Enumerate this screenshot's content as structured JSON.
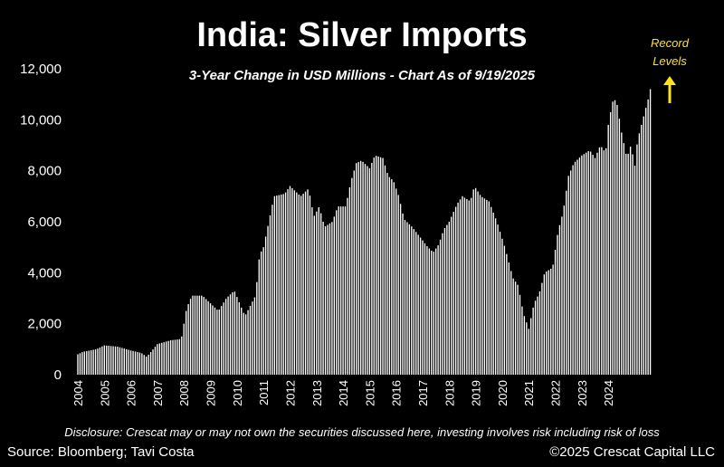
{
  "title": "India: Silver Imports",
  "subtitle": "3-Year Change in USD Millions - Chart As of 9/19/2025",
  "annotation": {
    "line1": "Record",
    "line2": "Levels",
    "color": "#ffe21a"
  },
  "disclosure": "Disclosure: Crescat may or may not own the securities discussed here, investing involves risk including risk of loss",
  "source": "Source: Bloomberg; Tavi Costa",
  "copyright": "©2025 Crescat Capital LLC",
  "colors": {
    "background": "#000000",
    "bars": "#ffffff",
    "text": "#ffffff",
    "accent": "#ffe21a"
  },
  "chart_data": {
    "type": "bar",
    "title": "India: Silver Imports",
    "subtitle": "3-Year Change in USD Millions - Chart As of 9/19/2025",
    "ylim": [
      0,
      12000
    ],
    "y_ticks": [
      "0",
      "2,000",
      "4,000",
      "6,000",
      "8,000",
      "10,000",
      "12,000"
    ],
    "y_tick_values": [
      0,
      2000,
      4000,
      6000,
      8000,
      10000,
      12000
    ],
    "x_ticks": [
      "2004",
      "2005",
      "2006",
      "2007",
      "2008",
      "2009",
      "2010",
      "2011",
      "2012",
      "2013",
      "2014",
      "2015",
      "2016",
      "2017",
      "2018",
      "2019",
      "2020",
      "2021",
      "2022",
      "2023",
      "2024"
    ],
    "x_range": [
      2004,
      2025.7
    ],
    "grid": false,
    "bar_step_months": 1,
    "keyframes": [
      [
        2004.0,
        800
      ],
      [
        2004.2,
        900
      ],
      [
        2004.7,
        1000
      ],
      [
        2005.0,
        1150
      ],
      [
        2005.5,
        1100
      ],
      [
        2006.0,
        950
      ],
      [
        2006.4,
        850
      ],
      [
        2006.6,
        700
      ],
      [
        2007.0,
        1200
      ],
      [
        2007.5,
        1350
      ],
      [
        2007.9,
        1400
      ],
      [
        2008.1,
        2600
      ],
      [
        2008.3,
        3100
      ],
      [
        2008.7,
        3100
      ],
      [
        2009.0,
        2800
      ],
      [
        2009.3,
        2500
      ],
      [
        2009.6,
        3000
      ],
      [
        2009.9,
        3300
      ],
      [
        2010.1,
        2800
      ],
      [
        2010.3,
        2300
      ],
      [
        2010.5,
        2700
      ],
      [
        2010.7,
        3100
      ],
      [
        2010.85,
        4700
      ],
      [
        2011.0,
        5000
      ],
      [
        2011.2,
        6000
      ],
      [
        2011.4,
        7000
      ],
      [
        2011.8,
        7100
      ],
      [
        2012.0,
        7400
      ],
      [
        2012.2,
        7200
      ],
      [
        2012.4,
        7000
      ],
      [
        2012.7,
        7300
      ],
      [
        2012.9,
        6200
      ],
      [
        2013.1,
        6600
      ],
      [
        2013.3,
        5800
      ],
      [
        2013.6,
        6000
      ],
      [
        2013.8,
        6600
      ],
      [
        2014.1,
        6600
      ],
      [
        2014.3,
        7600
      ],
      [
        2014.5,
        8300
      ],
      [
        2014.7,
        8400
      ],
      [
        2015.0,
        8100
      ],
      [
        2015.2,
        8600
      ],
      [
        2015.5,
        8500
      ],
      [
        2015.7,
        7800
      ],
      [
        2015.9,
        7600
      ],
      [
        2016.1,
        7000
      ],
      [
        2016.3,
        6100
      ],
      [
        2016.6,
        5800
      ],
      [
        2016.9,
        5400
      ],
      [
        2017.2,
        5000
      ],
      [
        2017.4,
        4800
      ],
      [
        2017.6,
        5100
      ],
      [
        2017.8,
        5700
      ],
      [
        2018.0,
        6000
      ],
      [
        2018.3,
        6700
      ],
      [
        2018.5,
        7000
      ],
      [
        2018.8,
        6800
      ],
      [
        2018.95,
        7400
      ],
      [
        2019.2,
        7000
      ],
      [
        2019.5,
        6800
      ],
      [
        2019.8,
        6000
      ],
      [
        2020.1,
        5000
      ],
      [
        2020.4,
        3800
      ],
      [
        2020.6,
        3500
      ],
      [
        2020.8,
        2400
      ],
      [
        2021.0,
        1800
      ],
      [
        2021.2,
        2800
      ],
      [
        2021.4,
        3200
      ],
      [
        2021.6,
        4000
      ],
      [
        2021.9,
        4200
      ],
      [
        2022.1,
        5600
      ],
      [
        2022.3,
        6400
      ],
      [
        2022.5,
        7800
      ],
      [
        2022.7,
        8300
      ],
      [
        2023.0,
        8600
      ],
      [
        2023.3,
        8800
      ],
      [
        2023.5,
        8500
      ],
      [
        2023.7,
        9000
      ],
      [
        2023.9,
        8700
      ],
      [
        2024.0,
        9800
      ],
      [
        2024.15,
        10700
      ],
      [
        2024.3,
        10800
      ],
      [
        2024.5,
        9500
      ],
      [
        2024.7,
        8500
      ],
      [
        2024.85,
        9000
      ],
      [
        2025.0,
        8200
      ],
      [
        2025.1,
        9200
      ],
      [
        2025.25,
        9800
      ],
      [
        2025.4,
        10400
      ],
      [
        2025.55,
        11000
      ],
      [
        2025.65,
        11600
      ]
    ]
  }
}
